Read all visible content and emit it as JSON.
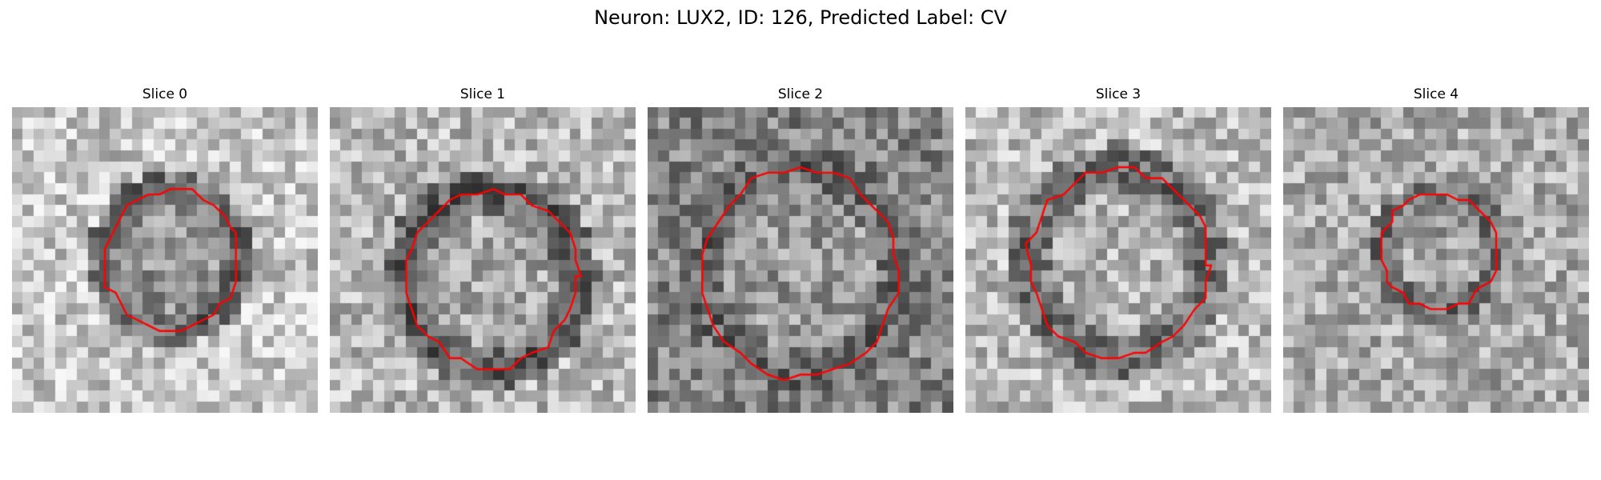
{
  "figure": {
    "title": "Neuron: LUX2, ID: 126, Predicted Label: CV"
  },
  "colors": {
    "contour": "#ff0000",
    "background": "#ffffff"
  },
  "grid_cells": 28,
  "panels": [
    {
      "title": "Slice 0",
      "contour_center": [
        0.52,
        0.5
      ],
      "contour_radius": [
        0.22,
        0.23
      ],
      "contour_brightness": 0.42,
      "inside_brightness": 0.58,
      "outside_brightness": 0.78,
      "seed": 11
    },
    {
      "title": "Slice 1",
      "contour_center": [
        0.53,
        0.56
      ],
      "contour_radius": [
        0.28,
        0.29
      ],
      "contour_brightness": 0.4,
      "inside_brightness": 0.66,
      "outside_brightness": 0.72,
      "seed": 23
    },
    {
      "title": "Slice 2",
      "contour_center": [
        0.5,
        0.54
      ],
      "contour_radius": [
        0.32,
        0.34
      ],
      "contour_brightness": 0.43,
      "inside_brightness": 0.6,
      "outside_brightness": 0.52,
      "seed": 37
    },
    {
      "title": "Slice 3",
      "contour_center": [
        0.5,
        0.51
      ],
      "contour_radius": [
        0.29,
        0.31
      ],
      "contour_brightness": 0.44,
      "inside_brightness": 0.7,
      "outside_brightness": 0.73,
      "seed": 41
    },
    {
      "title": "Slice 4",
      "contour_center": [
        0.51,
        0.47
      ],
      "contour_radius": [
        0.19,
        0.19
      ],
      "contour_brightness": 0.46,
      "inside_brightness": 0.64,
      "outside_brightness": 0.67,
      "seed": 53
    }
  ]
}
